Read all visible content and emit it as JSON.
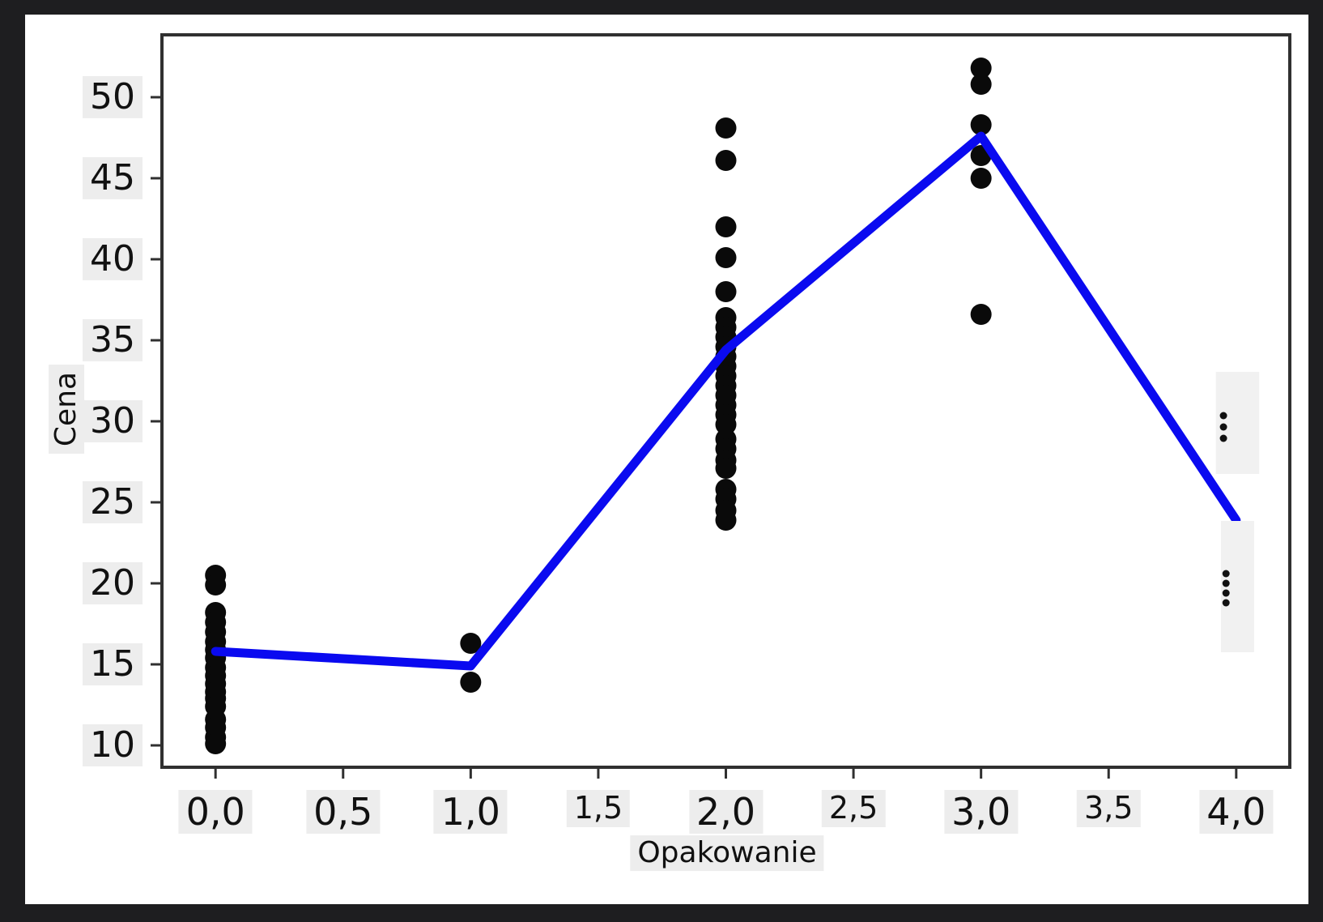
{
  "colors": {
    "outer_frame": "#1e1e20",
    "figure_bg": "#ffffff",
    "spine": "#303030",
    "tick": "#303030",
    "point": "#0a0a0a",
    "line": "#0a0af0",
    "label_bg": "#ededed",
    "masked_box_bg": "#f1f1f1",
    "ellipsis_dot": "#111111"
  },
  "chart_data": {
    "type": "scatter",
    "title": "",
    "xlabel": "Opakowanie",
    "ylabel": "Cena",
    "xlim": [
      -0.21,
      4.21
    ],
    "ylim": [
      8.65,
      53.85
    ],
    "grid": false,
    "legend": "none",
    "x_ticks": {
      "values": [
        0.0,
        0.5,
        1.0,
        1.5,
        2.0,
        2.5,
        3.0,
        3.5,
        4.0
      ],
      "labels": [
        "0,0",
        "0,5",
        "1,0",
        "1,5",
        "2,0",
        "2,5",
        "3,0",
        "3,5",
        "4,0"
      ],
      "small_labels": [
        "1,5",
        "2,5",
        "3,5"
      ]
    },
    "y_ticks": {
      "values": [
        10,
        15,
        20,
        25,
        30,
        35,
        40,
        45,
        50
      ],
      "labels": [
        "10",
        "15",
        "20",
        "25",
        "30",
        "35",
        "40",
        "45",
        "50"
      ]
    },
    "points": [
      {
        "x": 0,
        "y": [
          20.5,
          19.9,
          18.2,
          17.6,
          17.0,
          16.4,
          15.9,
          15.4,
          14.8,
          14.3,
          13.8,
          13.3,
          12.9,
          12.4,
          11.6,
          11.1,
          10.5,
          10.1
        ]
      },
      {
        "x": 1,
        "y": [
          16.3,
          13.9
        ]
      },
      {
        "x": 2,
        "y": [
          48.1,
          46.1,
          42.0,
          40.1,
          38.0,
          36.4,
          35.8,
          35.2,
          34.6,
          34.0,
          33.4,
          32.8,
          32.2,
          31.6,
          31.0,
          30.4,
          29.8,
          28.9,
          28.3,
          27.6,
          27.1,
          25.8,
          25.2,
          24.5,
          23.9
        ]
      },
      {
        "x": 3,
        "y": [
          51.8,
          50.8,
          48.3,
          46.4,
          45.0,
          36.6
        ]
      },
      {
        "x": 4,
        "y": []
      }
    ],
    "mean_line": {
      "x": [
        0,
        1,
        2,
        3,
        4
      ],
      "y": [
        15.8,
        14.9,
        34.4,
        47.6,
        23.9
      ]
    },
    "masked_regions": [
      {
        "x0": 3.92,
        "x1": 4.09,
        "y0": 26.75,
        "y1": 33.05,
        "ellipsis_dots_y": [
          30.35,
          29.65,
          28.95
        ],
        "dots_x": 3.95
      },
      {
        "x0": 3.94,
        "x1": 4.07,
        "y0": 15.75,
        "y1": 23.85,
        "ellipsis_dots_y": [
          20.6,
          20.0,
          19.4,
          18.8
        ],
        "dots_x": 3.96
      }
    ]
  }
}
